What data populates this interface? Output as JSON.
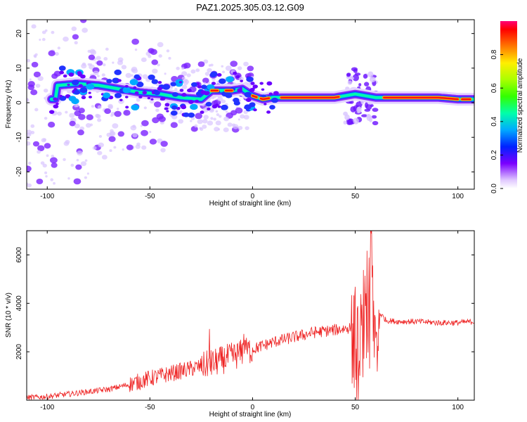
{
  "title": "PAZ1.2025.305.03.12.G09",
  "chart_data": [
    {
      "type": "heatmap",
      "name": "spectrogram",
      "xlabel": "Height of straight line (km)",
      "ylabel": "Frequency (Hz)",
      "xlim": [
        -110,
        108
      ],
      "ylim": [
        -25,
        24
      ],
      "xticks": [
        -100,
        -50,
        0,
        50,
        100
      ],
      "yticks": [
        -20,
        -10,
        0,
        10,
        20
      ],
      "ridge": [
        [
          -95,
          5
        ],
        [
          -85,
          5.5
        ],
        [
          -75,
          5
        ],
        [
          -65,
          4
        ],
        [
          -55,
          3
        ],
        [
          -45,
          2.5
        ],
        [
          -35,
          1.5
        ],
        [
          -25,
          1
        ],
        [
          -20,
          3.5
        ],
        [
          -15,
          3.5
        ],
        [
          -10,
          3.5
        ],
        [
          -5,
          4
        ],
        [
          0,
          2
        ],
        [
          5,
          1
        ],
        [
          10,
          1.5
        ],
        [
          20,
          1.5
        ],
        [
          30,
          1.5
        ],
        [
          40,
          1.5
        ],
        [
          45,
          2
        ],
        [
          50,
          2.5
        ],
        [
          55,
          2
        ],
        [
          60,
          1.5
        ],
        [
          70,
          1.5
        ],
        [
          80,
          1.5
        ],
        [
          90,
          1.5
        ],
        [
          100,
          1
        ],
        [
          108,
          1
        ]
      ],
      "colorbar": {
        "label": "Normalized spectral amplitude",
        "ticks": [
          "0.0",
          "0.2",
          "0.4",
          "0.6",
          "0.8"
        ],
        "range": [
          0,
          1
        ]
      }
    },
    {
      "type": "line",
      "name": "snr",
      "xlabel": "Height of straight line (km)",
      "ylabel": "SNR (10 * v/v)",
      "xlim": [
        -110,
        108
      ],
      "ylim": [
        0,
        7000
      ],
      "xticks": [
        -100,
        -50,
        0,
        50,
        100
      ],
      "yticks": [
        2000,
        4000,
        6000
      ],
      "color": "#ee2222",
      "series": [
        {
          "name": "SNR",
          "x": [
            -110,
            -100,
            -90,
            -80,
            -70,
            -60,
            -50,
            -40,
            -30,
            -20,
            -15,
            -10,
            -5,
            0,
            10,
            20,
            30,
            40,
            48,
            50,
            52,
            54,
            56,
            58,
            60,
            62,
            65,
            70,
            80,
            90,
            100,
            108
          ],
          "values": [
            100,
            150,
            250,
            350,
            450,
            650,
            900,
            1100,
            1300,
            1500,
            1650,
            1800,
            1950,
            2100,
            2400,
            2600,
            2800,
            2900,
            3000,
            1800,
            1000,
            3200,
            1200,
            5500,
            2000,
            3600,
            3300,
            3250,
            3250,
            3200,
            3200,
            3250
          ]
        }
      ]
    }
  ]
}
